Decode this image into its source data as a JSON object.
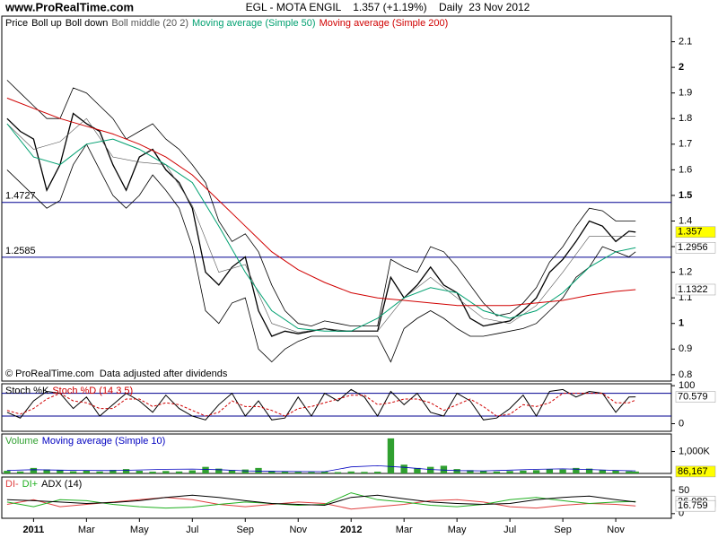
{
  "site": "www.ProRealTime.com",
  "header": "EGL - MOTA ENGIL    1.357 (+1.19%)    Daily  23 Nov 2012",
  "chart_data": [
    {
      "type": "line",
      "note": "© ProRealTime.com  Data adjusted after dividends",
      "xlim": [
        -1.2,
        24.1
      ],
      "ylim": [
        0.775,
        2.2
      ],
      "yticks": [
        0.8,
        0.9,
        1,
        1.1,
        1.2,
        1.3,
        1.4,
        1.5,
        1.6,
        1.7,
        1.8,
        1.9,
        2,
        2.1
      ],
      "x": [
        -1,
        -0.5,
        0,
        0.5,
        1,
        1.5,
        2,
        2.5,
        3,
        3.5,
        4,
        4.5,
        5,
        5.5,
        6,
        6.5,
        7,
        7.5,
        8,
        8.5,
        9,
        9.5,
        10,
        10.5,
        11,
        11.5,
        12,
        12.5,
        13,
        13.5,
        14,
        14.5,
        15,
        15.5,
        16,
        16.5,
        17,
        17.5,
        18,
        18.5,
        19,
        19.5,
        20,
        20.5,
        21,
        21.5,
        22,
        22.5,
        22.75
      ],
      "hlines": [
        {
          "value": 1.4727,
          "label": "1.4727"
        },
        {
          "value": 1.2585,
          "label": "1.2585"
        }
      ],
      "hline_color": "#000090",
      "tags": [
        {
          "value": 1.357,
          "color": "#ffff00",
          "text_color": "#000000"
        },
        {
          "value": 1.2956,
          "color": "#ffffff",
          "text_color": "#00a070"
        },
        {
          "value": 1.1322,
          "color": "#ffffff",
          "text_color": "#d00000"
        }
      ],
      "series": [
        {
          "name": "Price",
          "color": "#000000",
          "width": 1.3,
          "values": [
            1.8,
            1.75,
            1.72,
            1.52,
            1.62,
            1.82,
            1.78,
            1.75,
            1.62,
            1.52,
            1.65,
            1.68,
            1.6,
            1.55,
            1.45,
            1.2,
            1.15,
            1.22,
            1.26,
            1.05,
            0.95,
            0.97,
            0.96,
            0.97,
            0.98,
            0.97,
            0.97,
            0.97,
            0.97,
            1.18,
            1.1,
            1.15,
            1.22,
            1.15,
            1.12,
            1.02,
            0.99,
            1.0,
            1.01,
            1.05,
            1.1,
            1.2,
            1.25,
            1.32,
            1.4,
            1.38,
            1.32,
            1.36,
            1.357
          ]
        },
        {
          "name": "Boll up",
          "color": "#000000",
          "width": 0.8,
          "values": [
            1.95,
            1.9,
            1.85,
            1.8,
            1.8,
            1.92,
            1.9,
            1.85,
            1.8,
            1.72,
            1.75,
            1.78,
            1.72,
            1.68,
            1.62,
            1.55,
            1.4,
            1.32,
            1.35,
            1.28,
            1.15,
            1.05,
            1.0,
            0.99,
            1.01,
            1.0,
            0.99,
            0.99,
            0.99,
            1.25,
            1.22,
            1.2,
            1.3,
            1.28,
            1.22,
            1.15,
            1.08,
            1.03,
            1.04,
            1.08,
            1.14,
            1.24,
            1.3,
            1.38,
            1.45,
            1.44,
            1.4,
            1.4,
            1.4
          ]
        },
        {
          "name": "Boll down",
          "color": "#000000",
          "width": 0.8,
          "values": [
            1.6,
            1.55,
            1.5,
            1.45,
            1.48,
            1.62,
            1.7,
            1.6,
            1.5,
            1.45,
            1.5,
            1.58,
            1.52,
            1.45,
            1.3,
            1.05,
            1.0,
            1.08,
            1.1,
            0.9,
            0.85,
            0.9,
            0.93,
            0.95,
            0.95,
            0.95,
            0.95,
            0.95,
            0.95,
            0.85,
            0.98,
            1.02,
            1.05,
            1.02,
            0.98,
            0.95,
            0.95,
            0.96,
            0.97,
            0.98,
            1.0,
            1.05,
            1.1,
            1.18,
            1.22,
            1.3,
            1.28,
            1.26,
            1.28
          ]
        },
        {
          "name": "Boll middle (20 2)",
          "color": "#555555",
          "width": 0.6,
          "x": [
            -1,
            0,
            1,
            2,
            3,
            4,
            5,
            6,
            7,
            8,
            9,
            10,
            11,
            12,
            13,
            14,
            15,
            16,
            17,
            18,
            19,
            20,
            21,
            22,
            22.75
          ],
          "values": [
            1.78,
            1.68,
            1.71,
            1.8,
            1.65,
            1.63,
            1.62,
            1.46,
            1.2,
            1.23,
            1.0,
            0.965,
            0.98,
            0.97,
            0.97,
            1.1,
            1.18,
            1.1,
            1.02,
            1.0,
            1.07,
            1.2,
            1.34,
            1.34,
            1.34
          ]
        },
        {
          "name": "Moving average (Simple 50)",
          "color": "#00a070",
          "width": 1,
          "x": [
            -1,
            0,
            1,
            2,
            3,
            4,
            5,
            6,
            7,
            8,
            9,
            10,
            11,
            12,
            13,
            14,
            15,
            16,
            17,
            18,
            19,
            20,
            21,
            22,
            22.75
          ],
          "values": [
            1.78,
            1.65,
            1.62,
            1.7,
            1.72,
            1.68,
            1.62,
            1.55,
            1.38,
            1.2,
            1.05,
            0.98,
            0.97,
            0.97,
            1.02,
            1.1,
            1.14,
            1.12,
            1.05,
            1.02,
            1.05,
            1.12,
            1.22,
            1.28,
            1.2956
          ]
        },
        {
          "name": "Moving average (Simple 200)",
          "color": "#d00000",
          "width": 1,
          "x": [
            -1,
            0,
            1,
            2,
            3,
            4,
            5,
            6,
            7,
            8,
            9,
            10,
            11,
            12,
            13,
            14,
            15,
            16,
            17,
            18,
            19,
            20,
            21,
            22,
            22.75
          ],
          "values": [
            1.88,
            1.84,
            1.8,
            1.77,
            1.74,
            1.7,
            1.65,
            1.58,
            1.48,
            1.38,
            1.28,
            1.21,
            1.16,
            1.12,
            1.1,
            1.09,
            1.08,
            1.07,
            1.07,
            1.07,
            1.08,
            1.09,
            1.11,
            1.125,
            1.1322
          ]
        }
      ]
    },
    {
      "type": "line",
      "xlim": [
        -1.2,
        24.1
      ],
      "ylim": [
        -20,
        105
      ],
      "yticks": [
        0,
        100
      ],
      "hlines": [
        80,
        20
      ],
      "hline_color": "#000090",
      "tags": [
        {
          "value": 70.579,
          "color": "#ffffff",
          "text_color": "#000000"
        }
      ],
      "x": [
        -1,
        -0.5,
        0,
        0.5,
        1,
        1.5,
        2,
        2.5,
        3,
        3.5,
        4,
        4.5,
        5,
        5.5,
        6,
        6.5,
        7,
        7.5,
        8,
        8.5,
        9,
        9.5,
        10,
        10.5,
        11,
        11.5,
        12,
        12.5,
        13,
        13.5,
        14,
        14.5,
        15,
        15.5,
        16,
        16.5,
        17,
        17.5,
        18,
        18.5,
        19,
        19.5,
        20,
        20.5,
        21,
        21.5,
        22,
        22.5,
        22.75
      ],
      "series": [
        {
          "name": "Stoch %K",
          "color": "#000000",
          "width": 1,
          "values": [
            30,
            15,
            60,
            85,
            80,
            40,
            70,
            20,
            50,
            80,
            60,
            30,
            75,
            40,
            20,
            10,
            50,
            80,
            20,
            60,
            10,
            15,
            70,
            20,
            80,
            60,
            90,
            70,
            20,
            85,
            50,
            80,
            30,
            20,
            80,
            60,
            10,
            15,
            40,
            75,
            20,
            85,
            90,
            70,
            85,
            80,
            30,
            70,
            70.579
          ]
        },
        {
          "name": "Stoch %D (14 3 5)",
          "color": "#d00000",
          "width": 1,
          "dash": "3 2",
          "values": [
            35,
            25,
            40,
            65,
            80,
            60,
            55,
            40,
            40,
            65,
            65,
            45,
            55,
            50,
            35,
            20,
            30,
            60,
            45,
            45,
            35,
            20,
            40,
            45,
            55,
            65,
            75,
            75,
            50,
            55,
            65,
            65,
            55,
            35,
            50,
            65,
            45,
            20,
            25,
            50,
            45,
            55,
            80,
            80,
            80,
            80,
            55,
            55,
            62
          ]
        }
      ]
    },
    {
      "type": "bar",
      "xlim": [
        -1.2,
        24.1
      ],
      "ylim": [
        0,
        1800000
      ],
      "yticks": [
        {
          "value": 1000000,
          "label": "1,000K"
        }
      ],
      "tags": [
        {
          "value": 86167,
          "label": "86,167",
          "color": "#ffff00",
          "text_color": "#000000"
        }
      ],
      "x": [
        -1,
        -0.5,
        0,
        0.5,
        1,
        1.5,
        2,
        2.5,
        3,
        3.5,
        4,
        4.5,
        5,
        5.5,
        6,
        6.5,
        7,
        7.5,
        8,
        8.5,
        9,
        9.5,
        10,
        10.5,
        11,
        11.5,
        12,
        12.5,
        13,
        13.5,
        14,
        14.5,
        15,
        15.5,
        16,
        16.5,
        17,
        17.5,
        18,
        18.5,
        19,
        19.5,
        20,
        20.5,
        21,
        21.5,
        22,
        22.5,
        22.75
      ],
      "series": [
        {
          "name": "Volume",
          "color": "#30a030",
          "values": [
            120000,
            90000,
            250000,
            180000,
            150000,
            100000,
            130000,
            90000,
            160000,
            200000,
            120000,
            80000,
            110000,
            90000,
            140000,
            300000,
            220000,
            150000,
            180000,
            250000,
            120000,
            90000,
            100000,
            70000,
            80000,
            60000,
            90000,
            70000,
            80000,
            1600000,
            400000,
            250000,
            300000,
            350000,
            200000,
            150000,
            120000,
            90000,
            110000,
            130000,
            150000,
            200000,
            180000,
            250000,
            220000,
            160000,
            140000,
            100000,
            86167
          ]
        },
        {
          "name": "Moving average (Simple 10)",
          "color": "#0000c0",
          "type": "line",
          "width": 0.8,
          "x": [
            -1,
            0,
            1,
            2,
            3,
            4,
            5,
            6,
            7,
            8,
            9,
            10,
            11,
            12,
            13,
            14,
            15,
            16,
            17,
            18,
            19,
            20,
            21,
            22,
            22.75
          ],
          "values": [
            140000,
            170000,
            150000,
            140000,
            130000,
            160000,
            190000,
            200000,
            170000,
            120000,
            95000,
            85000,
            80000,
            300000,
            350000,
            280000,
            180000,
            130000,
            120000,
            150000,
            190000,
            210000,
            180000,
            140000,
            120000
          ]
        }
      ]
    },
    {
      "type": "line",
      "xlim": [
        -1.2,
        24.1
      ],
      "ylim": [
        -10,
        79
      ],
      "yticks": [
        0,
        50
      ],
      "tags": [
        {
          "value": 26.089,
          "color": "#ffffff",
          "text_color": "#20a020"
        },
        {
          "value": 16.759,
          "color": "#ffffff",
          "text_color": "#d00000"
        }
      ],
      "xticks": [
        {
          "value": 0,
          "label": "2011"
        },
        {
          "value": 2,
          "label": "Mar"
        },
        {
          "value": 4,
          "label": "May"
        },
        {
          "value": 6,
          "label": "Jul"
        },
        {
          "value": 8,
          "label": "Sep"
        },
        {
          "value": 10,
          "label": "Nov"
        },
        {
          "value": 12,
          "label": "2012"
        },
        {
          "value": 14,
          "label": "Mar"
        },
        {
          "value": 16,
          "label": "May"
        },
        {
          "value": 18,
          "label": "Jul"
        },
        {
          "value": 20,
          "label": "Sep"
        },
        {
          "value": 22,
          "label": "Nov"
        }
      ],
      "x": [
        -1,
        0,
        1,
        2,
        3,
        4,
        5,
        6,
        7,
        8,
        9,
        10,
        11,
        12,
        13,
        14,
        15,
        16,
        17,
        18,
        19,
        20,
        21,
        22,
        22.75
      ],
      "series": [
        {
          "name": "DI-",
          "color": "#e04040",
          "width": 1,
          "values": [
            20,
            30,
            15,
            20,
            25,
            30,
            35,
            30,
            20,
            15,
            20,
            25,
            22,
            10,
            15,
            20,
            28,
            30,
            25,
            15,
            12,
            18,
            22,
            20,
            16.759
          ]
        },
        {
          "name": "DI+",
          "color": "#20b020",
          "width": 1,
          "values": [
            25,
            15,
            30,
            28,
            20,
            15,
            12,
            14,
            20,
            25,
            22,
            18,
            20,
            45,
            30,
            25,
            18,
            15,
            20,
            30,
            35,
            28,
            22,
            25,
            26.089
          ]
        },
        {
          "name": "ADX (14)",
          "color": "#000000",
          "width": 1,
          "values": [
            30,
            28,
            25,
            22,
            24,
            28,
            35,
            40,
            35,
            28,
            22,
            20,
            18,
            35,
            40,
            32,
            25,
            22,
            20,
            22,
            30,
            35,
            38,
            30,
            25
          ]
        }
      ]
    }
  ]
}
